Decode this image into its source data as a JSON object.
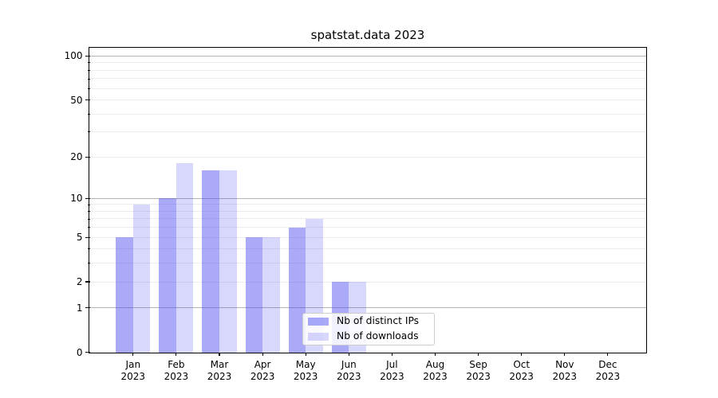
{
  "chart_data": {
    "type": "bar",
    "title": "spatstat.data 2023",
    "months": [
      "Jan",
      "Feb",
      "Mar",
      "Apr",
      "May",
      "Jun",
      "Jul",
      "Aug",
      "Sep",
      "Oct",
      "Nov",
      "Dec"
    ],
    "year_label": "2023",
    "series": [
      {
        "name": "Nb of distinct IPs",
        "values": [
          5,
          10,
          16,
          5,
          6,
          2,
          0,
          0,
          0,
          0,
          0,
          0
        ],
        "color": "rgba(77,77,242,0.48)"
      },
      {
        "name": "Nb of downloads",
        "values": [
          9,
          18,
          16,
          5,
          7,
          2,
          0,
          0,
          0,
          0,
          0,
          0
        ],
        "color": "rgba(77,77,242,0.22)"
      }
    ],
    "yscale": "log1p",
    "ylim": [
      0,
      114
    ],
    "yticks": [
      100,
      50,
      20,
      10,
      5,
      2,
      1,
      0
    ],
    "gridline_values": [
      1,
      2,
      3,
      4,
      5,
      6,
      7,
      8,
      9,
      10,
      20,
      30,
      40,
      50,
      60,
      70,
      80,
      90,
      100
    ],
    "major_gridlines": [
      1,
      10,
      100
    ],
    "grid": true,
    "legend_position": "lower center inside",
    "colors": {
      "grid_major": "#b3b3b3",
      "grid_minor": "#ececec",
      "axis": "#000000",
      "background": "#ffffff"
    }
  }
}
